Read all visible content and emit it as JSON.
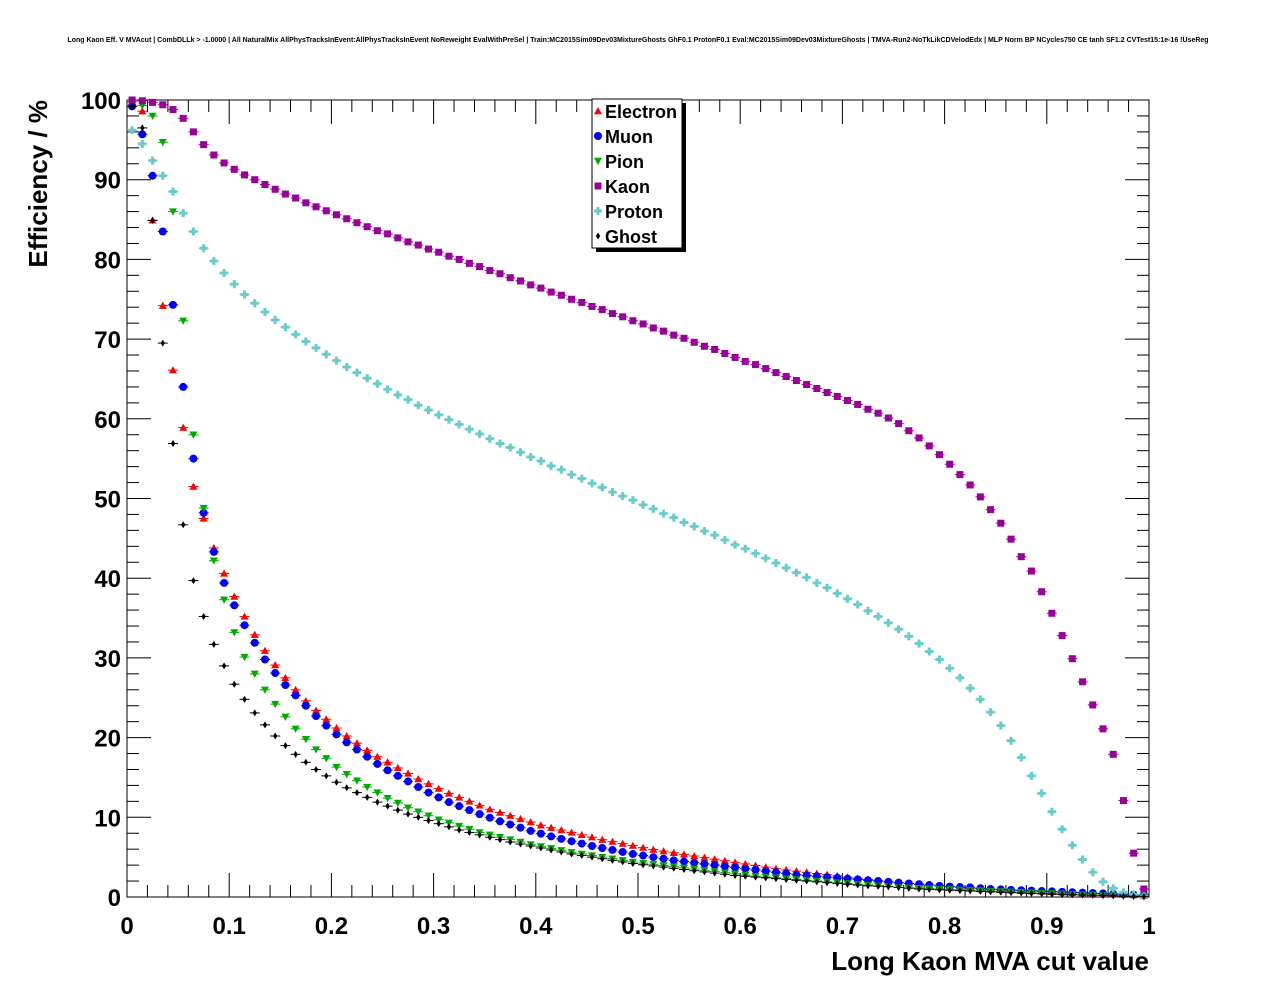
{
  "chart_data": {
    "type": "scatter",
    "title": "Long Kaon Eff. V MVAcut | CombDLLk > -1.0000 | All NaturalMix AllPhysTracksInEvent:AllPhysTracksInEvent NoReweight EvalWithPreSel | Train:MC2015Sim09Dev03MixtureGhosts GhF0.1 ProtonF0.1 Eval:MC2015Sim09Dev03MixtureGhosts | TMVA-Run2-NoTkLikCDVelodEdx | MLP Norm BP NCycles750 CE tanh SF1.2 CVTest15:1e-16 !UseReg",
    "xlabel": "Long Kaon MVA cut value",
    "ylabel": "Efficiency / %",
    "xlim": [
      0,
      1
    ],
    "ylim": [
      0,
      100
    ],
    "x_ticks": [
      "0",
      "0.1",
      "0.2",
      "0.3",
      "0.4",
      "0.5",
      "0.6",
      "0.7",
      "0.8",
      "0.9",
      "1"
    ],
    "y_ticks": [
      "0",
      "10",
      "20",
      "30",
      "40",
      "50",
      "60",
      "70",
      "80",
      "90",
      "100"
    ],
    "x": [
      0.005,
      0.015,
      0.025,
      0.035,
      0.045,
      0.055,
      0.065,
      0.075,
      0.085,
      0.095,
      0.105,
      0.115,
      0.125,
      0.135,
      0.145,
      0.155,
      0.165,
      0.175,
      0.185,
      0.195,
      0.205,
      0.215,
      0.225,
      0.235,
      0.245,
      0.255,
      0.265,
      0.275,
      0.285,
      0.295,
      0.305,
      0.315,
      0.325,
      0.335,
      0.345,
      0.355,
      0.365,
      0.375,
      0.385,
      0.395,
      0.405,
      0.415,
      0.425,
      0.435,
      0.445,
      0.455,
      0.465,
      0.475,
      0.485,
      0.495,
      0.505,
      0.515,
      0.525,
      0.535,
      0.545,
      0.555,
      0.565,
      0.575,
      0.585,
      0.595,
      0.605,
      0.615,
      0.625,
      0.635,
      0.645,
      0.655,
      0.665,
      0.675,
      0.685,
      0.695,
      0.705,
      0.715,
      0.725,
      0.735,
      0.745,
      0.755,
      0.765,
      0.775,
      0.785,
      0.795,
      0.805,
      0.815,
      0.825,
      0.835,
      0.845,
      0.855,
      0.865,
      0.875,
      0.885,
      0.895,
      0.905,
      0.915,
      0.925,
      0.935,
      0.945,
      0.955,
      0.965,
      0.975,
      0.985,
      0.995
    ],
    "legend_position": "top-center",
    "series": [
      {
        "name": "Electron",
        "color": "#ff0000",
        "marker": "triangle-up",
        "values": [
          99.8,
          98.6,
          84.9,
          74.2,
          66.1,
          58.9,
          51.5,
          47.5,
          43.8,
          40.6,
          37.7,
          35.2,
          32.9,
          30.9,
          29.1,
          27.5,
          26.0,
          24.6,
          23.4,
          22.3,
          21.2,
          20.2,
          19.3,
          18.4,
          17.6,
          16.9,
          16.2,
          15.5,
          14.8,
          14.2,
          13.6,
          13.0,
          12.5,
          12.0,
          11.5,
          11.0,
          10.6,
          10.2,
          9.8,
          9.4,
          9.0,
          8.7,
          8.4,
          8.1,
          7.8,
          7.5,
          7.2,
          6.95,
          6.7,
          6.45,
          6.2,
          5.95,
          5.75,
          5.55,
          5.35,
          5.15,
          4.95,
          4.75,
          4.55,
          4.35,
          4.15,
          3.95,
          3.75,
          3.55,
          3.4,
          3.25,
          3.1,
          2.95,
          2.8,
          2.65,
          2.5,
          2.35,
          2.2,
          2.05,
          1.9,
          1.8,
          1.7,
          1.6,
          1.5,
          1.4,
          1.3,
          1.2,
          1.1,
          1.0,
          0.95,
          0.9,
          0.85,
          0.8,
          0.75,
          0.7,
          0.65,
          0.6,
          0.55,
          0.5,
          0.45,
          0.4,
          0.35,
          0.3,
          0.25,
          0.2
        ]
      },
      {
        "name": "Muon",
        "color": "#0000ff",
        "marker": "circle",
        "values": [
          99.2,
          95.7,
          90.5,
          83.5,
          74.3,
          64.0,
          55.0,
          48.2,
          43.3,
          39.4,
          36.6,
          34.1,
          31.9,
          29.8,
          28.1,
          26.6,
          25.3,
          24.0,
          22.7,
          21.5,
          20.4,
          19.4,
          18.5,
          17.6,
          16.7,
          15.9,
          15.2,
          14.5,
          13.8,
          13.1,
          12.5,
          11.9,
          11.4,
          10.9,
          10.4,
          9.95,
          9.5,
          9.1,
          8.7,
          8.3,
          7.95,
          7.6,
          7.3,
          7.0,
          6.7,
          6.4,
          6.15,
          5.9,
          5.65,
          5.4,
          5.2,
          5.0,
          4.8,
          4.6,
          4.45,
          4.3,
          4.15,
          4.0,
          3.85,
          3.7,
          3.55,
          3.4,
          3.25,
          3.1,
          2.95,
          2.8,
          2.7,
          2.6,
          2.5,
          2.4,
          2.3,
          2.2,
          2.1,
          2.0,
          1.9,
          1.8,
          1.7,
          1.6,
          1.5,
          1.4,
          1.3,
          1.25,
          1.2,
          1.1,
          1.0,
          0.95,
          0.9,
          0.85,
          0.8,
          0.75,
          0.7,
          0.65,
          0.6,
          0.55,
          0.5,
          0.45,
          0.4,
          0.35,
          0.3,
          0.25
        ]
      },
      {
        "name": "Pion",
        "color": "#00aa00",
        "marker": "triangle-down",
        "values": [
          99.8,
          99.3,
          98.0,
          94.7,
          86.0,
          72.3,
          58.0,
          48.8,
          42.2,
          37.3,
          33.2,
          30.1,
          28.0,
          26.0,
          24.2,
          22.6,
          21.1,
          19.8,
          18.5,
          17.4,
          16.3,
          15.4,
          14.6,
          13.8,
          13.1,
          12.4,
          11.8,
          11.2,
          10.7,
          10.2,
          9.7,
          9.3,
          8.9,
          8.5,
          8.1,
          7.8,
          7.5,
          7.2,
          6.9,
          6.6,
          6.35,
          6.1,
          5.85,
          5.6,
          5.4,
          5.2,
          5.0,
          4.8,
          4.6,
          4.4,
          4.25,
          4.1,
          3.95,
          3.8,
          3.65,
          3.5,
          3.35,
          3.2,
          3.05,
          2.9,
          2.75,
          2.6,
          2.5,
          2.4,
          2.3,
          2.2,
          2.1,
          2.0,
          1.9,
          1.8,
          1.7,
          1.6,
          1.5,
          1.4,
          1.3,
          1.2,
          1.15,
          1.1,
          1.05,
          1.0,
          0.95,
          0.9,
          0.85,
          0.8,
          0.75,
          0.7,
          0.65,
          0.6,
          0.55,
          0.5,
          0.45,
          0.4,
          0.35,
          0.3,
          0.25,
          0.2,
          0.18,
          0.15,
          0.12,
          0.1
        ]
      },
      {
        "name": "Kaon",
        "color": "#990099",
        "marker": "square",
        "values": [
          100.0,
          99.9,
          99.7,
          99.4,
          98.8,
          97.7,
          96.0,
          94.4,
          93.1,
          92.1,
          91.3,
          90.6,
          90.0,
          89.4,
          88.8,
          88.2,
          87.7,
          87.1,
          86.6,
          86.1,
          85.6,
          85.1,
          84.6,
          84.1,
          83.6,
          83.2,
          82.7,
          82.2,
          81.8,
          81.3,
          80.9,
          80.4,
          80.0,
          79.5,
          79.1,
          78.6,
          78.2,
          77.7,
          77.3,
          76.8,
          76.4,
          75.9,
          75.5,
          75.0,
          74.6,
          74.1,
          73.7,
          73.2,
          72.8,
          72.3,
          71.9,
          71.4,
          71.0,
          70.5,
          70.1,
          69.6,
          69.1,
          68.7,
          68.2,
          67.7,
          67.2,
          66.8,
          66.3,
          65.8,
          65.3,
          64.8,
          64.3,
          63.8,
          63.3,
          62.8,
          62.3,
          61.8,
          61.2,
          60.7,
          60.1,
          59.4,
          58.5,
          57.6,
          56.6,
          55.5,
          54.3,
          53.0,
          51.7,
          50.2,
          48.6,
          46.9,
          44.9,
          42.7,
          40.9,
          38.3,
          35.6,
          32.8,
          29.9,
          27.0,
          24.1,
          21.1,
          17.9,
          12.1,
          5.5,
          1.0
        ]
      },
      {
        "name": "Proton",
        "color": "#66cccc",
        "marker": "cross",
        "values": [
          96.2,
          94.5,
          92.4,
          90.5,
          88.5,
          85.8,
          83.5,
          81.4,
          79.8,
          78.3,
          76.9,
          75.6,
          74.5,
          73.4,
          72.4,
          71.5,
          70.6,
          69.7,
          68.9,
          68.1,
          67.3,
          66.5,
          65.8,
          65.1,
          64.4,
          63.7,
          63.0,
          62.4,
          61.7,
          61.1,
          60.5,
          59.9,
          59.3,
          58.7,
          58.1,
          57.5,
          56.9,
          56.4,
          55.8,
          55.2,
          54.7,
          54.1,
          53.6,
          53.0,
          52.5,
          51.9,
          51.4,
          50.8,
          50.3,
          49.8,
          49.2,
          48.7,
          48.1,
          47.6,
          47.0,
          46.5,
          45.9,
          45.4,
          44.8,
          44.2,
          43.7,
          43.1,
          42.5,
          41.9,
          41.3,
          40.7,
          40.1,
          39.4,
          38.8,
          38.1,
          37.4,
          36.7,
          35.9,
          35.2,
          34.4,
          33.6,
          32.7,
          31.8,
          30.8,
          29.8,
          28.7,
          27.5,
          26.2,
          24.8,
          23.2,
          21.5,
          19.6,
          17.5,
          15.2,
          13.0,
          10.7,
          8.5,
          6.5,
          4.7,
          3.1,
          1.9,
          1.1,
          0.6,
          0.3,
          0.1
        ]
      },
      {
        "name": "Ghost",
        "color": "#000000",
        "marker": "diamond",
        "values": [
          99.2,
          96.5,
          84.9,
          69.5,
          56.9,
          46.7,
          39.7,
          35.2,
          31.7,
          29.0,
          26.7,
          24.8,
          23.1,
          21.6,
          20.2,
          19.0,
          17.9,
          16.9,
          16.0,
          15.2,
          14.4,
          13.7,
          13.1,
          12.5,
          11.9,
          11.4,
          10.9,
          10.4,
          10.0,
          9.6,
          9.2,
          8.8,
          8.4,
          8.1,
          7.8,
          7.5,
          7.2,
          6.9,
          6.65,
          6.4,
          6.15,
          5.9,
          5.65,
          5.4,
          5.2,
          5.0,
          4.8,
          4.6,
          4.4,
          4.2,
          4.05,
          3.9,
          3.75,
          3.6,
          3.45,
          3.3,
          3.15,
          3.0,
          2.85,
          2.7,
          2.6,
          2.5,
          2.4,
          2.3,
          2.2,
          2.1,
          2.0,
          1.9,
          1.8,
          1.7,
          1.6,
          1.5,
          1.4,
          1.35,
          1.3,
          1.2,
          1.1,
          1.0,
          0.95,
          0.9,
          0.85,
          0.8,
          0.75,
          0.7,
          0.65,
          0.6,
          0.55,
          0.5,
          0.45,
          0.4,
          0.35,
          0.3,
          0.28,
          0.25,
          0.22,
          0.2,
          0.15,
          0.12,
          0.1,
          0.08
        ]
      }
    ]
  }
}
